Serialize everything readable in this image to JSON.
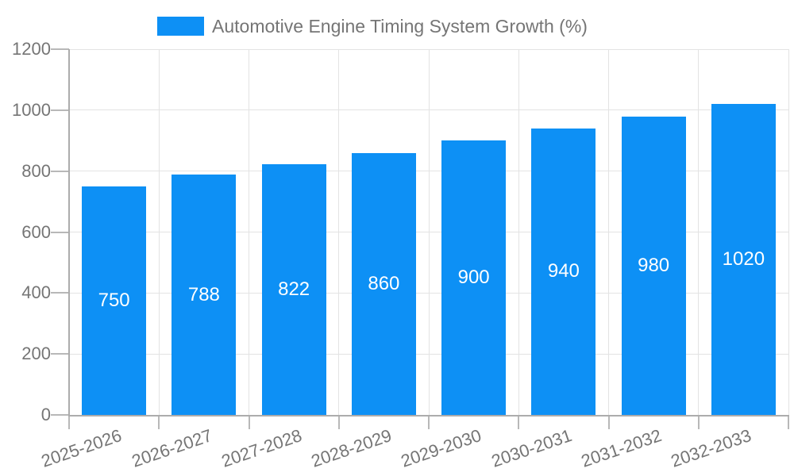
{
  "chart_data": {
    "type": "bar",
    "title": "Automotive Engine Timing System Growth (%)",
    "categories": [
      "2025-2026",
      "2026-2027",
      "2027-2028",
      "2028-2029",
      "2029-2030",
      "2030-2031",
      "2031-2032",
      "2032-2033"
    ],
    "values": [
      750,
      788,
      822,
      860,
      900,
      940,
      980,
      1020
    ],
    "ylim": [
      0,
      1200
    ],
    "yticks": [
      0,
      200,
      400,
      600,
      800,
      1000,
      1200
    ],
    "grid": true,
    "legend_position": "top",
    "xlabel": "",
    "ylabel": "",
    "bar_color": "#0D90F5",
    "value_label_color": "#FFFFFF",
    "axis_text_color": "#757575",
    "gridline_color": "#E3E3E3",
    "axis_line_color": "#ACACAC",
    "tick_color": "#B8B8B8"
  }
}
